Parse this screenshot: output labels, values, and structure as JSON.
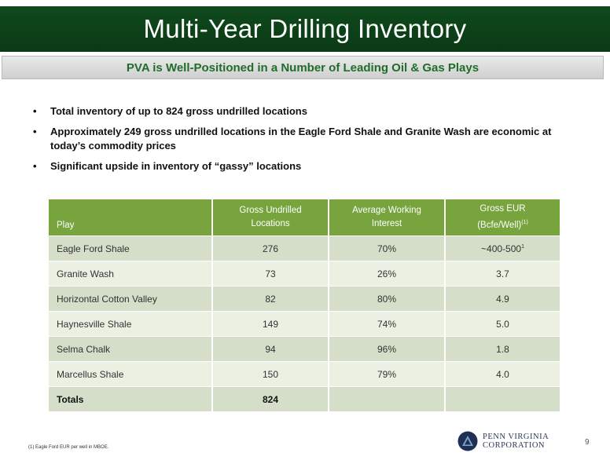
{
  "header": {
    "title": "Multi-Year Drilling Inventory",
    "subtitle": "PVA is Well-Positioned in a Number of Leading Oil & Gas Plays"
  },
  "bullets": [
    "Total inventory of up to 824 gross undrilled locations",
    "Approximately 249 gross undrilled locations in the Eagle Ford Shale and Granite Wash are economic at today’s commodity prices",
    "Significant upside in inventory of “gassy” locations"
  ],
  "bullet_glyph": "•",
  "table": {
    "headers": {
      "play": "Play",
      "locations_line1": "Gross Undrilled",
      "locations_line2": "Locations",
      "interest_line1": "Average Working",
      "interest_line2": "Interest",
      "eur_line1": "Gross EUR",
      "eur_line2": "(Bcfe/Well)",
      "eur_note": "(1)"
    },
    "rows": [
      {
        "play": "Eagle Ford Shale",
        "locations": "276",
        "interest": "70%",
        "eur": "~400-500",
        "eur_note": "1"
      },
      {
        "play": "Granite Wash",
        "locations": "73",
        "interest": "26%",
        "eur": "3.7"
      },
      {
        "play": "Horizontal Cotton Valley",
        "locations": "82",
        "interest": "80%",
        "eur": "4.9"
      },
      {
        "play": "Haynesville Shale",
        "locations": "149",
        "interest": "74%",
        "eur": "5.0"
      },
      {
        "play": "Selma Chalk",
        "locations": "94",
        "interest": "96%",
        "eur": "1.8"
      },
      {
        "play": "Marcellus Shale",
        "locations": "150",
        "interest": "79%",
        "eur": "4.0"
      }
    ],
    "totals": {
      "label": "Totals",
      "locations": "824"
    }
  },
  "footnote": "(1) Eagle Ford EUR per well in MBOE.",
  "logo": {
    "line1": "PENN VIRGINIA",
    "line2": "CORPORATION",
    "icon": "triangle-globe-icon"
  },
  "page_number": "9",
  "colors": {
    "title_bar": "#0f4a1d",
    "subtitle_text": "#1f6d2a",
    "table_header": "#77a43d",
    "row_dark": "#d5dec8",
    "row_light": "#ebf0e3",
    "logo_text": "#2a3a57"
  }
}
